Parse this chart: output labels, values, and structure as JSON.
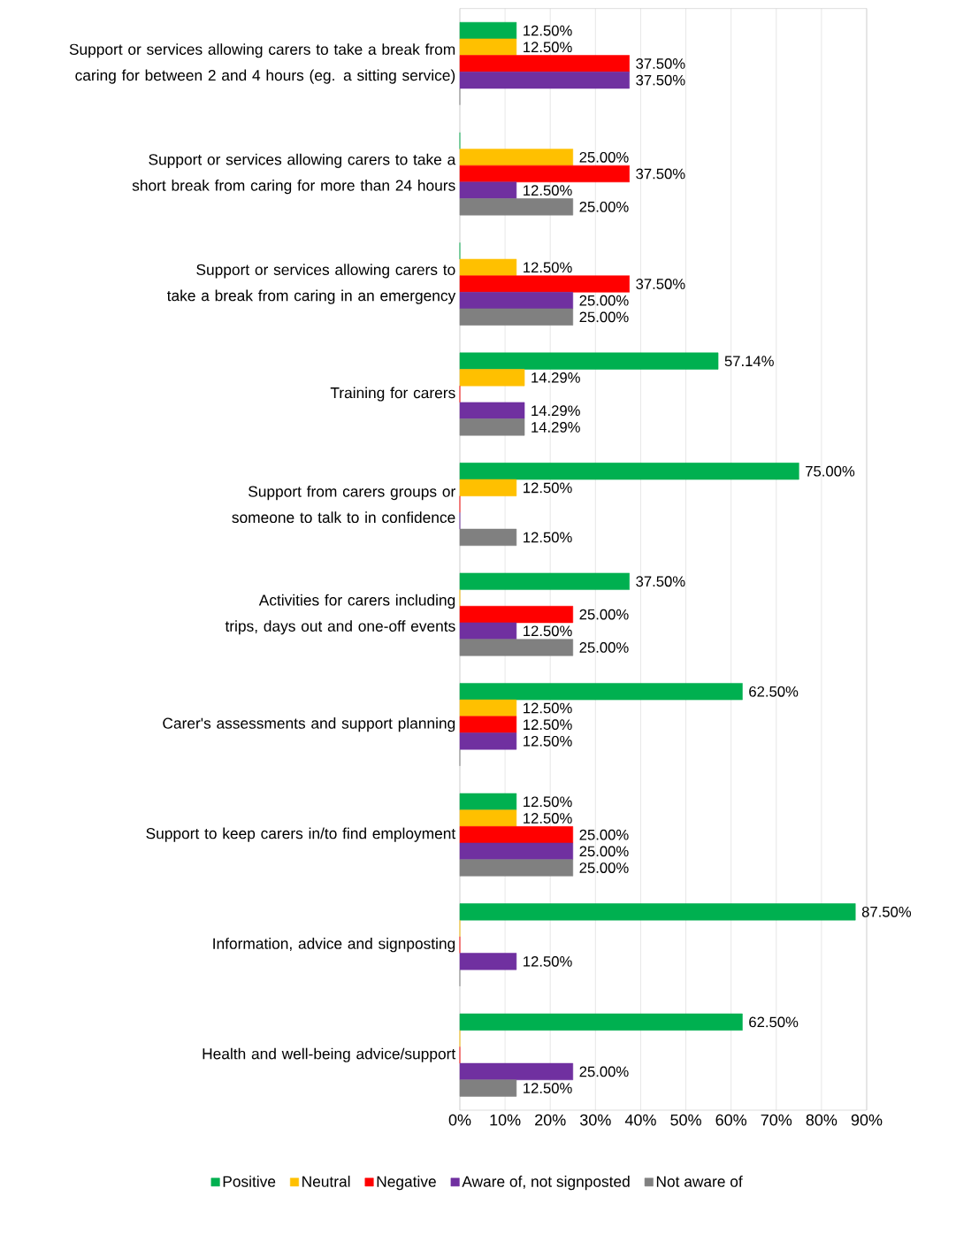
{
  "chart_data": {
    "type": "bar",
    "orientation": "horizontal",
    "categories": [
      "Support or services allowing carers to take a break from caring for between 2 and 4 hours (eg. a sitting service)",
      "Support or services allowing carers to take a short break from caring for more than 24 hours",
      "Support or services allowing carers to take a break from caring in an emergency",
      "Training for carers",
      "Support from carers groups or someone to talk to in confidence",
      "Activities for carers including trips, days out and one-off events",
      "Carer's assessments and support planning",
      "Support to keep carers in/to find employment",
      "Information, advice and signposting",
      "Health and well-being advice/support"
    ],
    "series": [
      {
        "name": "Positive",
        "color": "#00b050",
        "values": [
          12.5,
          0,
          0,
          57.14,
          75,
          37.5,
          62.5,
          12.5,
          87.5,
          62.5
        ],
        "value_labels": [
          "12.50%",
          null,
          null,
          "57.14%",
          "75.00%",
          "37.50%",
          "62.50%",
          "12.50%",
          "87.50%",
          "62.50%"
        ]
      },
      {
        "name": "Neutral",
        "color": "#ffc000",
        "values": [
          12.5,
          25,
          12.5,
          14.29,
          12.5,
          0,
          12.5,
          12.5,
          0,
          0
        ],
        "value_labels": [
          "12.50%",
          "25.00%",
          "12.50%",
          "14.29%",
          "12.50%",
          null,
          "12.50%",
          "12.50%",
          null,
          null
        ]
      },
      {
        "name": "Negative",
        "color": "#ff0000",
        "values": [
          37.5,
          37.5,
          37.5,
          0,
          0,
          25,
          12.5,
          25,
          0,
          0
        ],
        "value_labels": [
          "37.50%",
          "37.50%",
          "37.50%",
          null,
          null,
          "25.00%",
          "12.50%",
          "25.00%",
          null,
          null
        ]
      },
      {
        "name": "Aware of, not signposted",
        "color": "#7030a0",
        "values": [
          37.5,
          12.5,
          25,
          14.29,
          0,
          12.5,
          12.5,
          25,
          12.5,
          25
        ],
        "value_labels": [
          "37.50%",
          "12.50%",
          "25.00%",
          "14.29%",
          null,
          "12.50%",
          "12.50%",
          "25.00%",
          "12.50%",
          "25.00%"
        ]
      },
      {
        "name": "Not aware of",
        "color": "#808080",
        "values": [
          0,
          25,
          25,
          14.29,
          12.5,
          25,
          0,
          25,
          0,
          12.5
        ],
        "value_labels": [
          null,
          "25.00%",
          "25.00%",
          "14.29%",
          "12.50%",
          "25.00%",
          null,
          "25.00%",
          null,
          "12.50%"
        ]
      }
    ],
    "xlim": [
      0,
      90
    ],
    "xticks": [
      {
        "value": 0,
        "label": "0%"
      },
      {
        "value": 10,
        "label": "10%"
      },
      {
        "value": 20,
        "label": "20%"
      },
      {
        "value": 30,
        "label": "30%"
      },
      {
        "value": 40,
        "label": "40%"
      },
      {
        "value": 50,
        "label": "50%"
      },
      {
        "value": 60,
        "label": "60%"
      },
      {
        "value": 70,
        "label": "70%"
      },
      {
        "value": 80,
        "label": "80%"
      },
      {
        "value": 90,
        "label": "90%"
      }
    ],
    "grid": "x",
    "legend": "bottom"
  }
}
